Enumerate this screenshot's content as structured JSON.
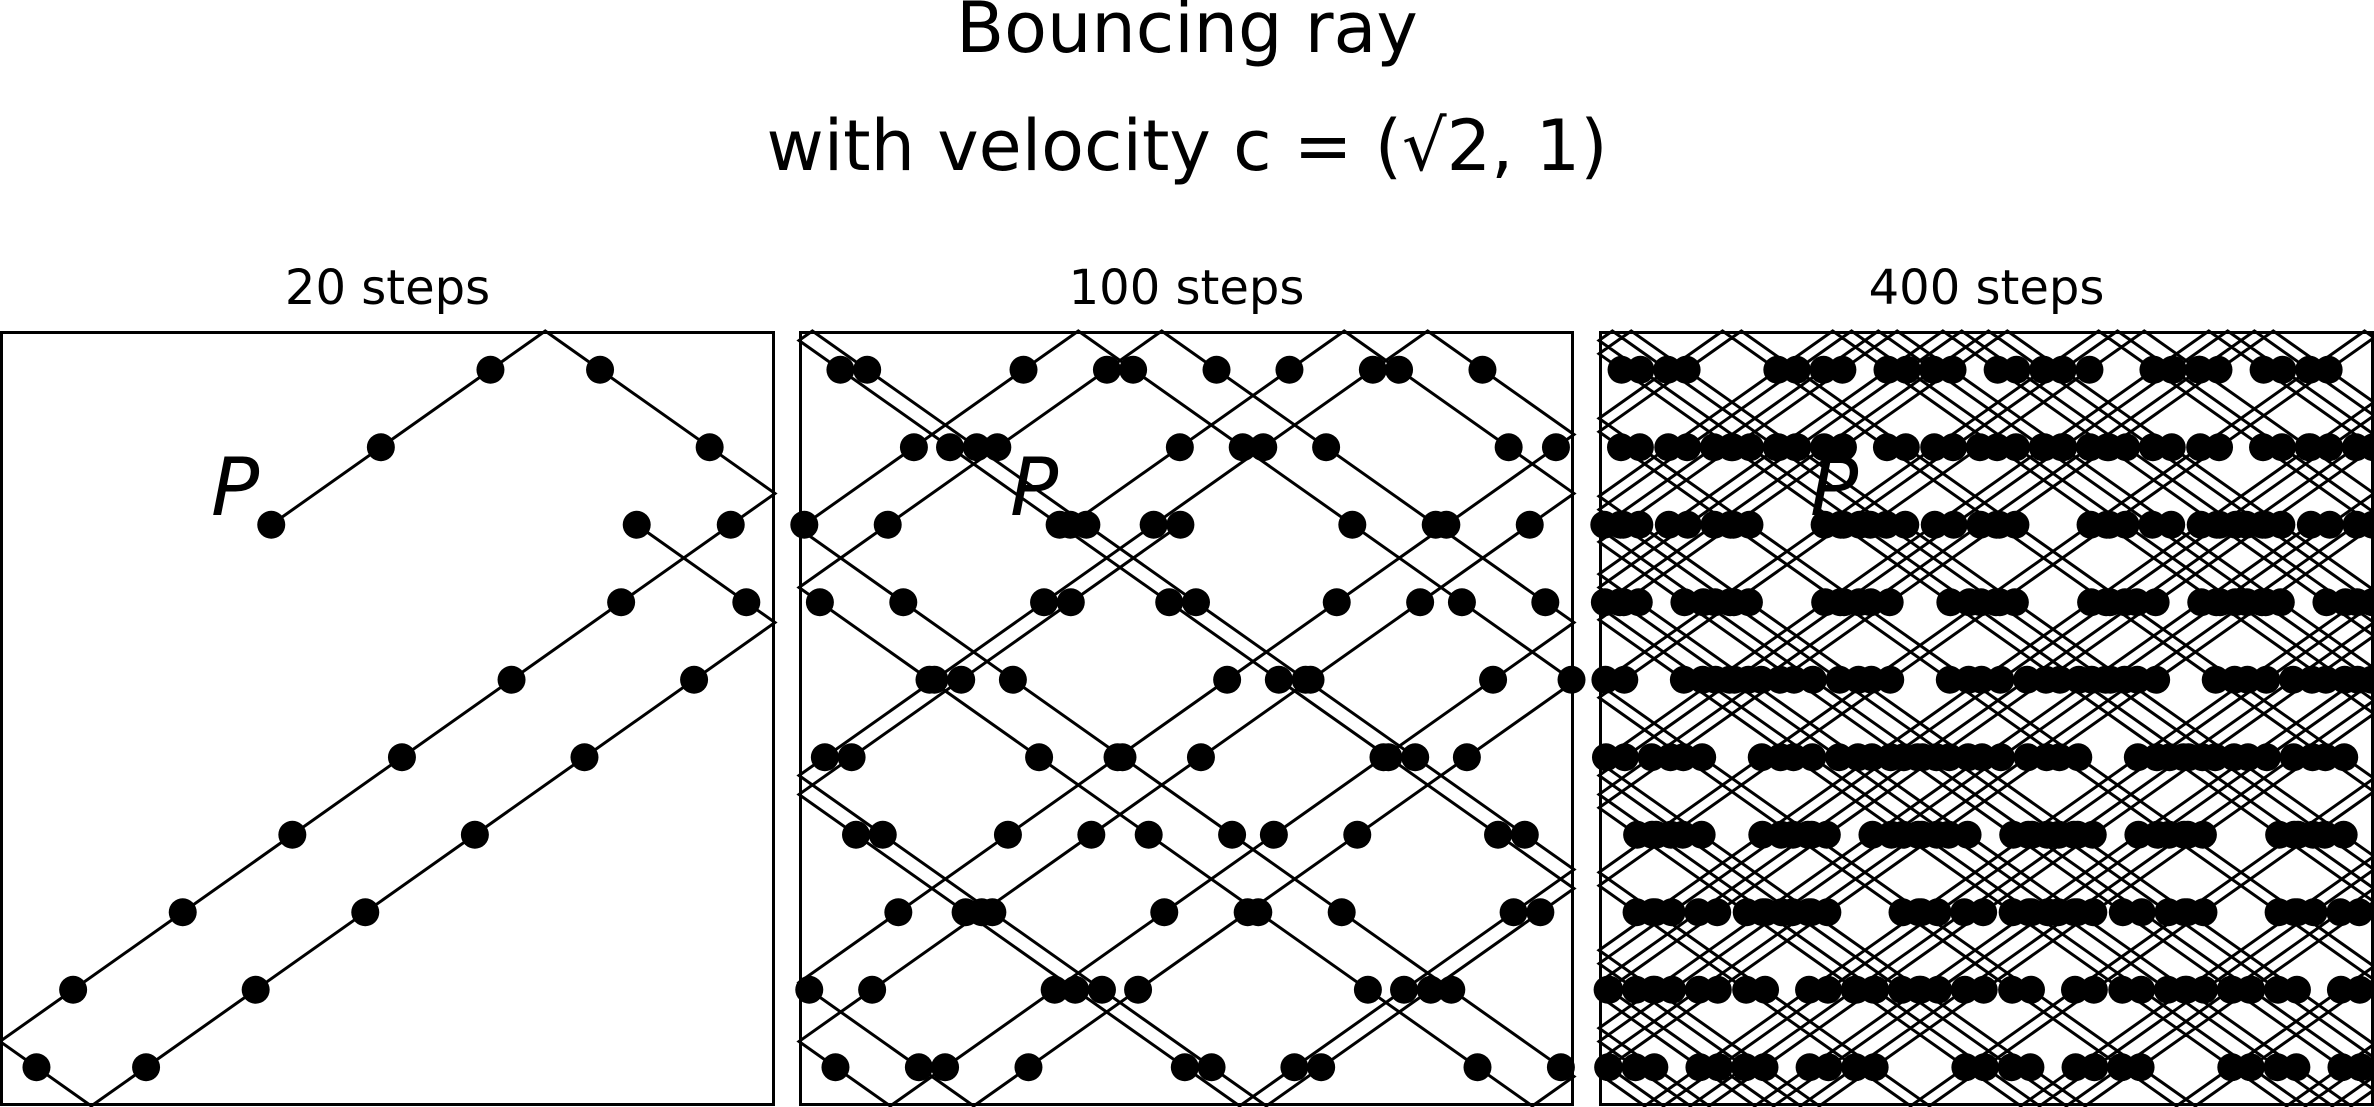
{
  "title": "Bouncing ray",
  "subtitle": "with velocity c = (√2, 1)",
  "chart_data": [
    {
      "type": "billiard",
      "title": "20 steps",
      "steps": 20,
      "point_label": "P",
      "start": [
        0.35,
        0.75
      ],
      "velocity": [
        1.41421356,
        1
      ],
      "dt": 0.1,
      "xlim": [
        0,
        1
      ],
      "ylim": [
        0,
        1
      ]
    },
    {
      "type": "billiard",
      "title": "100 steps",
      "steps": 100,
      "point_label": "P",
      "start": [
        0.35,
        0.75
      ],
      "velocity": [
        1.41421356,
        1
      ],
      "dt": 0.1,
      "xlim": [
        0,
        1
      ],
      "ylim": [
        0,
        1
      ]
    },
    {
      "type": "billiard",
      "title": "400 steps",
      "steps": 400,
      "point_label": "P",
      "start": [
        0.35,
        0.75
      ],
      "velocity": [
        1.41421356,
        1
      ],
      "dt": 0.1,
      "xlim": [
        0,
        1
      ],
      "ylim": [
        0,
        1
      ]
    }
  ]
}
